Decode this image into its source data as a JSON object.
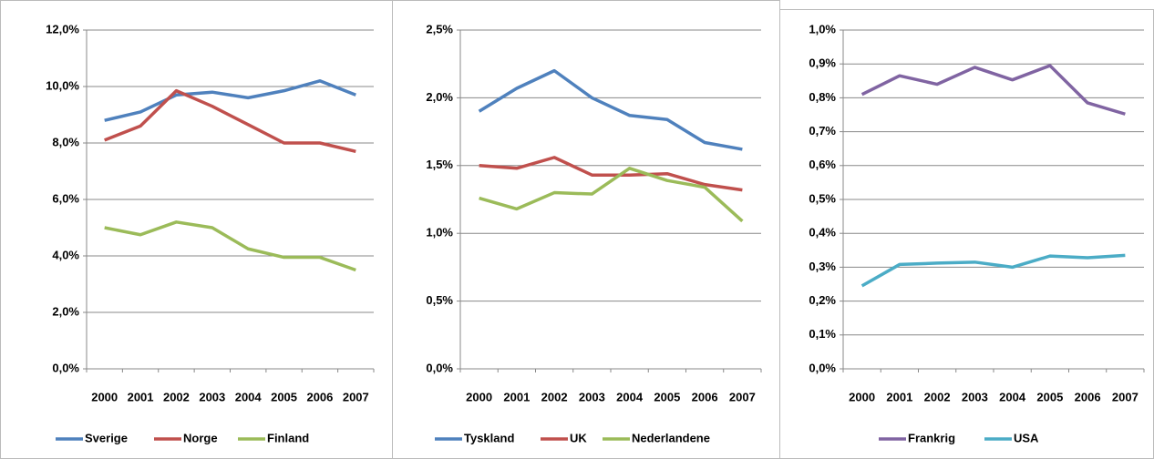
{
  "chart_data": [
    {
      "type": "line",
      "categories": [
        "2000",
        "2001",
        "2002",
        "2003",
        "2004",
        "2005",
        "2006",
        "2007"
      ],
      "series": [
        {
          "name": "Sverige",
          "color": "#4f81bd",
          "values": [
            8.8,
            9.1,
            9.7,
            9.8,
            9.6,
            9.85,
            10.2,
            9.7
          ]
        },
        {
          "name": "Norge",
          "color": "#c0504d",
          "values": [
            8.1,
            8.6,
            9.85,
            9.3,
            8.65,
            8.0,
            8.0,
            7.7
          ]
        },
        {
          "name": "Finland",
          "color": "#9bbb59",
          "values": [
            5.0,
            4.75,
            5.2,
            5.0,
            4.25,
            3.95,
            3.95,
            3.5
          ]
        }
      ],
      "ylim": [
        0,
        12
      ],
      "yticks": [
        {
          "value": 0,
          "label": "0,0%"
        },
        {
          "value": 2,
          "label": "2,0%"
        },
        {
          "value": 4,
          "label": "4,0%"
        },
        {
          "value": 6,
          "label": "6,0%"
        },
        {
          "value": 8,
          "label": "8,0%"
        },
        {
          "value": 10,
          "label": "10,0%"
        },
        {
          "value": 12,
          "label": "12,0%"
        }
      ],
      "grid": true,
      "legend": "bottom"
    },
    {
      "type": "line",
      "categories": [
        "2000",
        "2001",
        "2002",
        "2003",
        "2004",
        "2005",
        "2006",
        "2007"
      ],
      "series": [
        {
          "name": "Tyskland",
          "color": "#4f81bd",
          "values": [
            1.9,
            2.07,
            2.2,
            2.0,
            1.87,
            1.84,
            1.67,
            1.62
          ]
        },
        {
          "name": "UK",
          "color": "#c0504d",
          "values": [
            1.5,
            1.48,
            1.56,
            1.43,
            1.43,
            1.44,
            1.36,
            1.32
          ]
        },
        {
          "name": "Nederlandene",
          "color": "#9bbb59",
          "values": [
            1.26,
            1.18,
            1.3,
            1.29,
            1.48,
            1.39,
            1.34,
            1.09
          ]
        }
      ],
      "ylim": [
        0,
        2.5
      ],
      "yticks": [
        {
          "value": 0,
          "label": "0,0%"
        },
        {
          "value": 0.5,
          "label": "0,5%"
        },
        {
          "value": 1.0,
          "label": "1,0%"
        },
        {
          "value": 1.5,
          "label": "1,5%"
        },
        {
          "value": 2.0,
          "label": "2,0%"
        },
        {
          "value": 2.5,
          "label": "2,5%"
        }
      ],
      "grid": true,
      "legend": "bottom"
    },
    {
      "type": "line",
      "categories": [
        "2000",
        "2001",
        "2002",
        "2003",
        "2004",
        "2005",
        "2006",
        "2007"
      ],
      "series": [
        {
          "name": "Frankrig",
          "color": "#8064a2",
          "values": [
            0.81,
            0.865,
            0.84,
            0.89,
            0.853,
            0.895,
            0.785,
            0.752
          ]
        },
        {
          "name": "USA",
          "color": "#4bacc6",
          "values": [
            0.245,
            0.308,
            0.312,
            0.315,
            0.3,
            0.333,
            0.328,
            0.335
          ]
        }
      ],
      "ylim": [
        0,
        1.0
      ],
      "yticks": [
        {
          "value": 0,
          "label": "0,0%"
        },
        {
          "value": 0.1,
          "label": "0,1%"
        },
        {
          "value": 0.2,
          "label": "0,2%"
        },
        {
          "value": 0.3,
          "label": "0,3%"
        },
        {
          "value": 0.4,
          "label": "0,4%"
        },
        {
          "value": 0.5,
          "label": "0,5%"
        },
        {
          "value": 0.6,
          "label": "0,6%"
        },
        {
          "value": 0.7,
          "label": "0,7%"
        },
        {
          "value": 0.8,
          "label": "0,8%"
        },
        {
          "value": 0.9,
          "label": "0,9%"
        },
        {
          "value": 1.0,
          "label": "1,0%"
        }
      ],
      "grid": true,
      "legend": "bottom"
    }
  ]
}
